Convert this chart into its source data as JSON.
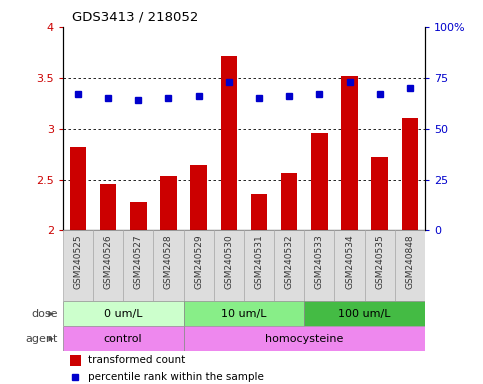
{
  "title": "GDS3413 / 218052",
  "samples": [
    "GSM240525",
    "GSM240526",
    "GSM240527",
    "GSM240528",
    "GSM240529",
    "GSM240530",
    "GSM240531",
    "GSM240532",
    "GSM240533",
    "GSM240534",
    "GSM240535",
    "GSM240848"
  ],
  "bar_values": [
    2.82,
    2.46,
    2.28,
    2.53,
    2.64,
    3.71,
    2.36,
    2.56,
    2.96,
    3.52,
    2.72,
    3.1
  ],
  "percentile_values": [
    67,
    65,
    64,
    65,
    66,
    73,
    65,
    66,
    67,
    73,
    67,
    70
  ],
  "bar_color": "#cc0000",
  "dot_color": "#0000cc",
  "ylim_left": [
    2.0,
    4.0
  ],
  "ylim_right": [
    0,
    100
  ],
  "yticks_left": [
    2.0,
    2.5,
    3.0,
    3.5,
    4.0
  ],
  "ytick_labels_left": [
    "2",
    "2.5",
    "3",
    "3.5",
    "4"
  ],
  "yticks_right": [
    0,
    25,
    50,
    75,
    100
  ],
  "ytick_labels_right": [
    "0",
    "25",
    "50",
    "75",
    "100%"
  ],
  "grid_lines": [
    2.5,
    3.0,
    3.5
  ],
  "dose_colors": [
    "#ccffcc",
    "#88ee88",
    "#44bb44"
  ],
  "dose_groups": [
    {
      "label": "0 um/L",
      "start": 0,
      "end": 4
    },
    {
      "label": "10 um/L",
      "start": 4,
      "end": 8
    },
    {
      "label": "100 um/L",
      "start": 8,
      "end": 12
    }
  ],
  "agent_color": "#ee88ee",
  "agent_groups": [
    {
      "label": "control",
      "start": 0,
      "end": 4
    },
    {
      "label": "homocysteine",
      "start": 4,
      "end": 12
    }
  ],
  "legend_bar_label": "transformed count",
  "legend_dot_label": "percentile rank within the sample",
  "bar_bottom": 2.0,
  "xtick_bg_color": "#dddddd",
  "left_label_color": "#444444",
  "fig_bg_color": "#ffffff"
}
